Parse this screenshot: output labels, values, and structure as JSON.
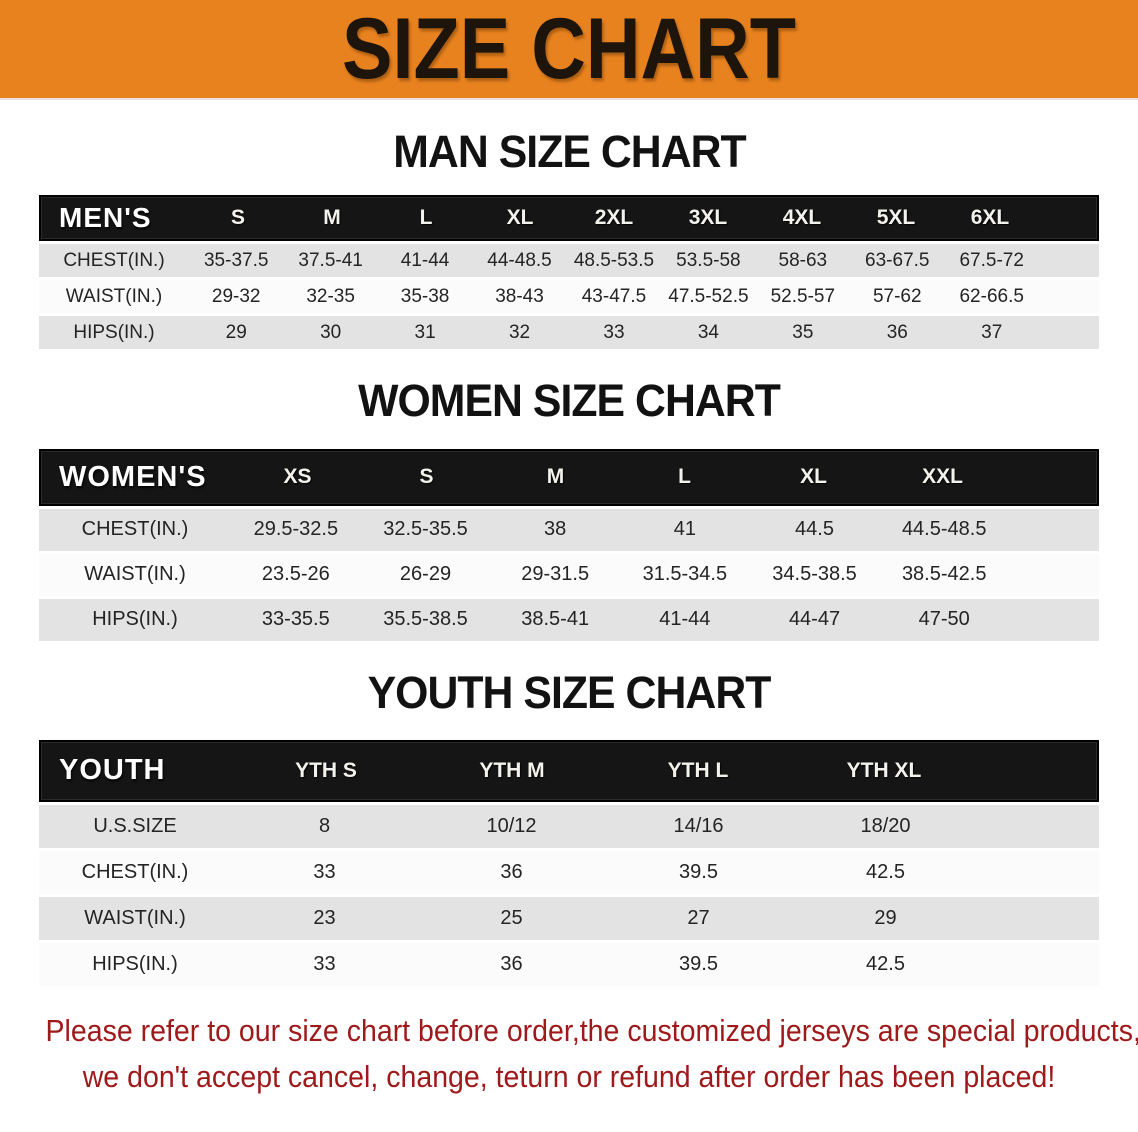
{
  "banner": {
    "title": "SIZE CHART",
    "bg_color": "#E8821E",
    "text_color": "#1D150C"
  },
  "colors": {
    "table_header_bg": "#151515",
    "row_gray": "#E3E3E3",
    "row_white": "#FBFBFB",
    "disclaimer_red": "#9E1A1A"
  },
  "sections": [
    {
      "heading": "MAN SIZE CHART",
      "table": {
        "header_label": "MEN'S",
        "columns": [
          "S",
          "M",
          "L",
          "XL",
          "2XL",
          "3XL",
          "4XL",
          "5XL",
          "6XL"
        ],
        "rows": [
          {
            "label": "CHEST(IN.)",
            "values": [
              "35-37.5",
              "37.5-41",
              "41-44",
              "44-48.5",
              "48.5-53.5",
              "53.5-58",
              "58-63",
              "63-67.5",
              "67.5-72"
            ]
          },
          {
            "label": "WAIST(IN.)",
            "values": [
              "29-32",
              "32-35",
              "35-38",
              "38-43",
              "43-47.5",
              "47.5-52.5",
              "52.5-57",
              "57-62",
              "62-66.5"
            ]
          },
          {
            "label": "HIPS(IN.)",
            "values": [
              "29",
              "30",
              "31",
              "32",
              "33",
              "34",
              "35",
              "36",
              "37"
            ]
          }
        ]
      }
    },
    {
      "heading": "WOMEN SIZE CHART",
      "table": {
        "header_label": "WOMEN'S",
        "columns": [
          "XS",
          "S",
          "M",
          "L",
          "XL",
          "XXL"
        ],
        "rows": [
          {
            "label": "CHEST(IN.)",
            "values": [
              "29.5-32.5",
              "32.5-35.5",
              "38",
              "41",
              "44.5",
              "44.5-48.5"
            ]
          },
          {
            "label": "WAIST(IN.)",
            "values": [
              "23.5-26",
              "26-29",
              "29-31.5",
              "31.5-34.5",
              "34.5-38.5",
              "38.5-42.5"
            ]
          },
          {
            "label": "HIPS(IN.)",
            "values": [
              "33-35.5",
              "35.5-38.5",
              "38.5-41",
              "41-44",
              "44-47",
              "47-50"
            ]
          }
        ]
      }
    },
    {
      "heading": "YOUTH SIZE CHART",
      "table": {
        "header_label": "YOUTH",
        "columns": [
          "YTH S",
          "YTH M",
          "YTH L",
          "YTH XL"
        ],
        "rows": [
          {
            "label": "U.S.SIZE",
            "values": [
              "8",
              "10/12",
              "14/16",
              "18/20"
            ]
          },
          {
            "label": "CHEST(IN.)",
            "values": [
              "33",
              "36",
              "39.5",
              "42.5"
            ]
          },
          {
            "label": "WAIST(IN.)",
            "values": [
              "23",
              "25",
              "27",
              "29"
            ]
          },
          {
            "label": "HIPS(IN.)",
            "values": [
              "33",
              "36",
              "39.5",
              "42.5"
            ]
          }
        ]
      }
    }
  ],
  "disclaimer": {
    "line1": "Please refer to our size chart before order,the customized jerseys are special products,",
    "line2": "we don't accept cancel, change, teturn or refund after order has been placed!"
  }
}
